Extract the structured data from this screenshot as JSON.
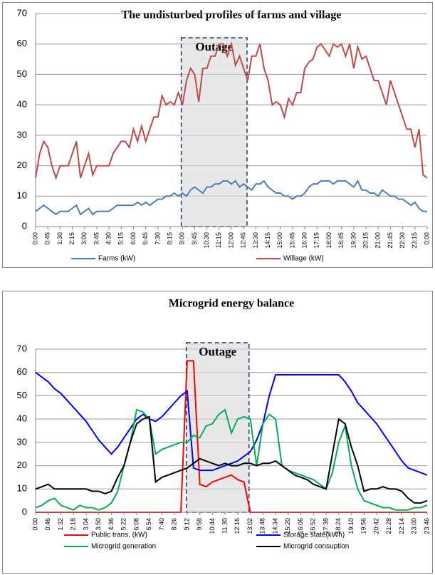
{
  "chart_data": [
    {
      "type": "line",
      "title": "The undisturbed profiles of farms and village",
      "annotation": "Outage",
      "categories": [
        "0:00",
        null,
        null,
        "0:45",
        null,
        null,
        "1:30",
        null,
        null,
        "2:15",
        null,
        null,
        "3:00",
        null,
        null,
        "3:45",
        null,
        null,
        "4:30",
        null,
        null,
        "5:15",
        null,
        null,
        "6:00",
        null,
        null,
        "6:45",
        null,
        null,
        "7:30",
        null,
        null,
        "8:15",
        null,
        null,
        "9:00",
        null,
        null,
        "9:45",
        null,
        null,
        "10:30",
        null,
        null,
        "11:15",
        null,
        null,
        "12:00",
        null,
        null,
        "12:45",
        null,
        null,
        "13:30",
        null,
        null,
        "14:15",
        null,
        null,
        "15:00",
        null,
        null,
        "15:45",
        null,
        null,
        "16:30",
        null,
        null,
        "17:15",
        null,
        null,
        "18:00",
        null,
        null,
        "18:45",
        null,
        null,
        "19:30",
        null,
        null,
        "20:15",
        null,
        null,
        "21:00",
        null,
        null,
        "21:45",
        null,
        null,
        "22:30",
        null,
        null,
        "23:15",
        null,
        null,
        "0:00"
      ],
      "series": [
        {
          "name": "Farms (kW)",
          "color": "#4a7ebb",
          "values": [
            5,
            6,
            7,
            6,
            5,
            4,
            5,
            5,
            5,
            6,
            7,
            4,
            5,
            6,
            4,
            5,
            5,
            5,
            5,
            6,
            7,
            7,
            7,
            7,
            7,
            8,
            7,
            8,
            7,
            8,
            9,
            9,
            10,
            10,
            11,
            10,
            11,
            10,
            12,
            13,
            12,
            11,
            13,
            13,
            14,
            14,
            15,
            15,
            14,
            15,
            13,
            14,
            13,
            12,
            14,
            14,
            15,
            13,
            12,
            11,
            11,
            10,
            10,
            9,
            10,
            10,
            11,
            13,
            14,
            14,
            15,
            15,
            15,
            14,
            15,
            15,
            15,
            14,
            13,
            15,
            12,
            12,
            11,
            11,
            10,
            12,
            11,
            10,
            10,
            9,
            9,
            8,
            7,
            8,
            6,
            5,
            5
          ]
        },
        {
          "name": "Willage (kW)",
          "color": "#be4b48",
          "values": [
            16,
            24,
            28,
            26,
            20,
            16,
            20,
            20,
            20,
            24,
            28,
            16,
            20,
            24,
            17,
            20,
            20,
            20,
            20,
            24,
            26,
            28,
            28,
            26,
            32,
            28,
            33,
            28,
            32,
            36,
            36,
            43,
            40,
            41,
            40,
            44,
            40,
            48,
            52,
            50,
            41,
            52,
            52,
            56,
            56,
            60,
            60,
            56,
            60,
            53,
            56,
            52,
            48,
            56,
            56,
            60,
            52,
            48,
            40,
            41,
            40,
            36,
            42,
            40,
            44,
            44,
            52,
            54,
            55,
            59,
            60,
            58,
            56,
            60,
            59,
            60,
            56,
            60,
            52,
            59,
            55,
            56,
            52,
            48,
            48,
            44,
            40,
            48,
            44,
            40,
            36,
            32,
            32,
            26,
            32,
            17,
            16
          ]
        }
      ],
      "ylim": [
        0,
        70
      ],
      "yticks": [
        0,
        10,
        20,
        30,
        40,
        50,
        60,
        70
      ],
      "grid": true,
      "legend": "bottom"
    },
    {
      "type": "line",
      "title": "Microgrid energy balance",
      "annotation": "Outage",
      "categories": [
        "0:00",
        null,
        "0:46",
        null,
        "1:32",
        null,
        "2:18",
        null,
        "3:04",
        null,
        "3:50",
        null,
        "4:36",
        null,
        "5:22",
        null,
        "6:08",
        null,
        "6:54",
        null,
        "7:40",
        null,
        "8:26",
        null,
        "9:12",
        null,
        "9:58",
        null,
        "10:44",
        null,
        "11:30",
        null,
        "12:16",
        null,
        "13:02",
        null,
        "13:48",
        null,
        "14:34",
        null,
        "15:20",
        null,
        "16:06",
        null,
        "16:52",
        null,
        "17:38",
        null,
        "18:24",
        null,
        "19:10",
        null,
        "19:56",
        null,
        "20:42",
        null,
        "21:28",
        null,
        "22:14",
        null,
        "23:00",
        null,
        "23:46"
      ],
      "series": [
        {
          "name": "Public trans. (kW)",
          "color": "#ff0000",
          "values": [
            0,
            0,
            0,
            0,
            0,
            0,
            0,
            0,
            0,
            0,
            0,
            0,
            0,
            0,
            0,
            0,
            0,
            0,
            0,
            0,
            0,
            0,
            0,
            0,
            65,
            65,
            12,
            11,
            13,
            14,
            15,
            16,
            14,
            13,
            0,
            0,
            0,
            0,
            0,
            0,
            0,
            0,
            0,
            0,
            0,
            0,
            0,
            0,
            0,
            0,
            0,
            0,
            0,
            0,
            0,
            0,
            0,
            0,
            0,
            0,
            0,
            0,
            0
          ]
        },
        {
          "name": "Storage state(kWh)",
          "color": "#0000ff",
          "values": [
            60,
            58,
            56,
            53,
            51,
            48,
            45,
            42,
            39,
            35,
            31,
            28,
            25,
            28,
            32,
            36,
            40,
            42,
            40,
            39,
            41,
            44,
            47,
            50,
            52,
            19,
            18,
            18,
            18,
            19,
            20,
            21,
            22,
            24,
            26,
            31,
            38,
            50,
            59,
            59,
            59,
            59,
            59,
            59,
            59,
            59,
            59,
            59,
            59,
            56,
            52,
            47,
            44,
            41,
            38,
            34,
            30,
            26,
            22,
            19,
            18,
            17,
            16
          ]
        },
        {
          "name": "Microgrid generation",
          "color": "#00b050",
          "values": [
            2,
            3,
            5,
            6,
            3,
            2,
            1,
            3,
            2,
            2,
            1,
            2,
            4,
            9,
            20,
            30,
            44,
            43,
            40,
            25,
            27,
            28,
            29,
            30,
            30,
            33,
            32,
            37,
            38,
            42,
            44,
            34,
            40,
            41,
            40,
            20,
            38,
            42,
            40,
            20,
            18,
            17,
            16,
            15,
            14,
            12,
            10,
            17,
            30,
            37,
            20,
            10,
            5,
            4,
            3,
            2,
            2,
            1,
            1,
            1,
            2,
            2,
            3
          ]
        },
        {
          "name": "Microgrid consuption",
          "color": "#000000",
          "values": [
            10,
            11,
            12,
            10,
            10,
            10,
            10,
            10,
            10,
            9,
            9,
            8,
            9,
            15,
            20,
            30,
            38,
            40,
            41,
            13,
            15,
            16,
            17,
            18,
            19,
            21,
            23,
            22,
            21,
            20,
            21,
            20,
            20,
            21,
            21,
            20,
            21,
            21,
            22,
            20,
            18,
            16,
            15,
            14,
            12,
            11,
            10,
            25,
            40,
            38,
            28,
            20,
            9,
            10,
            10,
            11,
            10,
            10,
            9,
            6,
            4,
            4,
            5
          ]
        }
      ],
      "ylim": [
        0,
        70
      ],
      "yticks": [
        0,
        10,
        20,
        30,
        40,
        50,
        60,
        70
      ],
      "grid": true,
      "legend": "bottom"
    }
  ]
}
